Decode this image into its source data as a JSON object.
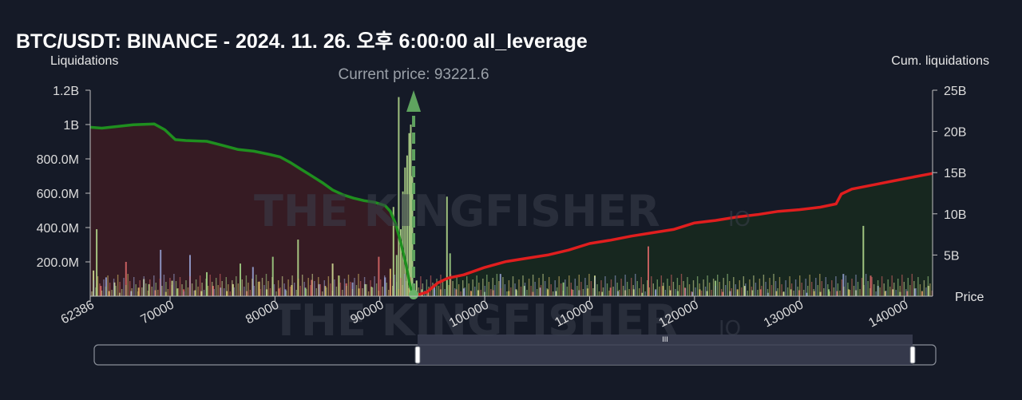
{
  "chart_data": {
    "type": "bar",
    "title": "BTC/USDT: BINANCE - 2024. 11. 26. 오후 6:00:00 all_leverage",
    "ylabel_left": "Liquidations",
    "ylabel_right": "Cum. liquidations",
    "xlabel": "Price",
    "current_price_label": "Current price: 93221.6",
    "current_price": 93221.6,
    "xlim": [
      62386,
      142700
    ],
    "ylim_left": [
      0,
      1200000000
    ],
    "ylim_right": [
      0,
      25000000000
    ],
    "x_ticks": [
      {
        "value": 62386,
        "label": "62386"
      },
      {
        "value": 70000,
        "label": "70000"
      },
      {
        "value": 80000,
        "label": "80000"
      },
      {
        "value": 90000,
        "label": "90000"
      },
      {
        "value": 100000,
        "label": "100000"
      },
      {
        "value": 110000,
        "label": "110000"
      },
      {
        "value": 120000,
        "label": "120000"
      },
      {
        "value": 130000,
        "label": "130000"
      },
      {
        "value": 140000,
        "label": "140000"
      }
    ],
    "y_ticks_left": [
      {
        "value": 200000000,
        "label": "200.0M"
      },
      {
        "value": 400000000,
        "label": "400.0M"
      },
      {
        "value": 600000000,
        "label": "600.0M"
      },
      {
        "value": 800000000,
        "label": "800.0M"
      },
      {
        "value": 1000000000,
        "label": "1B"
      },
      {
        "value": 1200000000,
        "label": "1.2B"
      }
    ],
    "y_ticks_right": [
      {
        "value": 5000000000,
        "label": "5B"
      },
      {
        "value": 10000000000,
        "label": "10B"
      },
      {
        "value": 15000000000,
        "label": "15B"
      },
      {
        "value": 20000000000,
        "label": "20B"
      },
      {
        "value": 25000000000,
        "label": "25B"
      }
    ],
    "series": [
      {
        "name": "cum_long",
        "color": "#1f8f1f",
        "fill": "#3a1c24",
        "points": [
          [
            62386,
            20500000000.0
          ],
          [
            63500,
            20400000000.0
          ],
          [
            65000,
            20600000000.0
          ],
          [
            66500,
            20800000000.0
          ],
          [
            68500,
            20900000000.0
          ],
          [
            69500,
            20200000000.0
          ],
          [
            70500,
            19000000000.0
          ],
          [
            71500,
            18900000000.0
          ],
          [
            73500,
            18800000000.0
          ],
          [
            75000,
            18300000000.0
          ],
          [
            76500,
            17800000000.0
          ],
          [
            78000,
            17600000000.0
          ],
          [
            79500,
            17200000000.0
          ],
          [
            80500,
            16900000000.0
          ],
          [
            81500,
            16200000000.0
          ],
          [
            82500,
            15400000000.0
          ],
          [
            83500,
            14600000000.0
          ],
          [
            84500,
            13800000000.0
          ],
          [
            85500,
            12900000000.0
          ],
          [
            86500,
            12300000000.0
          ],
          [
            87500,
            11900000000.0
          ],
          [
            88500,
            11600000000.0
          ],
          [
            89500,
            11400000000.0
          ],
          [
            90500,
            11000000000.0
          ],
          [
            91000,
            10300000000.0
          ],
          [
            91500,
            8800000000.0
          ],
          [
            92000,
            6500000000.0
          ],
          [
            92500,
            3800000000.0
          ],
          [
            92900,
            1200000000.0
          ],
          [
            93221.6,
            0
          ]
        ]
      },
      {
        "name": "cum_short",
        "color": "#e01e1e",
        "fill": "#17291f",
        "points": [
          [
            93221.6,
            0
          ],
          [
            94500,
            500000000.0
          ],
          [
            95500,
            1600000000.0
          ],
          [
            96500,
            2200000000.0
          ],
          [
            98000,
            2600000000.0
          ],
          [
            100000,
            3500000000.0
          ],
          [
            102000,
            4200000000.0
          ],
          [
            104000,
            4600000000.0
          ],
          [
            106000,
            5000000000.0
          ],
          [
            108000,
            5600000000.0
          ],
          [
            110000,
            6400000000.0
          ],
          [
            112000,
            6800000000.0
          ],
          [
            114000,
            7300000000.0
          ],
          [
            116000,
            7700000000.0
          ],
          [
            118000,
            8100000000.0
          ],
          [
            120000,
            8900000000.0
          ],
          [
            122000,
            9200000000.0
          ],
          [
            124000,
            9600000000.0
          ],
          [
            126000,
            9900000000.0
          ],
          [
            128000,
            10300000000.0
          ],
          [
            130000,
            10500000000.0
          ],
          [
            132000,
            10800000000.0
          ],
          [
            133500,
            11200000000.0
          ],
          [
            134000,
            12400000000.0
          ],
          [
            135000,
            13000000000.0
          ],
          [
            137000,
            13500000000.0
          ],
          [
            139000,
            14000000000.0
          ],
          [
            141000,
            14500000000.0
          ],
          [
            142700,
            14900000000.0
          ]
        ]
      }
    ],
    "bars": [
      [
        62700,
        150000000.0
      ],
      [
        63000,
        390000000.0
      ],
      [
        63400,
        60000000.0
      ],
      [
        63900,
        110000000.0
      ],
      [
        64200,
        30000000.0
      ],
      [
        64700,
        80000000.0
      ],
      [
        65200,
        20000000.0
      ],
      [
        65800,
        200000000.0
      ],
      [
        66300,
        30000000.0
      ],
      [
        67000,
        50000000.0
      ],
      [
        67500,
        100000000.0
      ],
      [
        68000,
        70000000.0
      ],
      [
        68600,
        35000000.0
      ],
      [
        69100,
        270000000.0
      ],
      [
        69600,
        25000000.0
      ],
      [
        70200,
        90000000.0
      ],
      [
        70700,
        45000000.0
      ],
      [
        71300,
        40000000.0
      ],
      [
        71900,
        240000000.0
      ],
      [
        72400,
        35000000.0
      ],
      [
        73000,
        30000000.0
      ],
      [
        73500,
        140000000.0
      ],
      [
        74100,
        60000000.0
      ],
      [
        74800,
        50000000.0
      ],
      [
        75400,
        30000000.0
      ],
      [
        76000,
        70000000.0
      ],
      [
        76700,
        190000000.0
      ],
      [
        77300,
        30000000.0
      ],
      [
        77900,
        170000000.0
      ],
      [
        78500,
        85000000.0
      ],
      [
        79200,
        40000000.0
      ],
      [
        79800,
        230000000.0
      ],
      [
        80400,
        45000000.0
      ],
      [
        81000,
        40000000.0
      ],
      [
        81600,
        65000000.0
      ],
      [
        82200,
        330000000.0
      ],
      [
        82900,
        50000000.0
      ],
      [
        83500,
        95000000.0
      ],
      [
        84200,
        70000000.0
      ],
      [
        84800,
        60000000.0
      ],
      [
        85500,
        190000000.0
      ],
      [
        86100,
        120000000.0
      ],
      [
        86800,
        75000000.0
      ],
      [
        87400,
        80000000.0
      ],
      [
        88000,
        45000000.0
      ],
      [
        88600,
        70000000.0
      ],
      [
        89200,
        55000000.0
      ],
      [
        89900,
        230000000.0
      ],
      [
        90500,
        110000000.0
      ],
      [
        91000,
        160000000.0
      ],
      [
        91300,
        520000000.0
      ],
      [
        91600,
        240000000.0
      ],
      [
        91800,
        1160000000.0
      ],
      [
        92000,
        390000000.0
      ],
      [
        92200,
        610000000.0
      ],
      [
        92400,
        750000000.0
      ],
      [
        92600,
        820000000.0
      ],
      [
        92800,
        950000000.0
      ],
      [
        92950,
        1000000000.0
      ],
      [
        93100,
        700000000.0
      ],
      [
        93500,
        90000000.0
      ],
      [
        94000,
        40000000.0
      ],
      [
        94600,
        35000000.0
      ],
      [
        95200,
        70000000.0
      ],
      [
        95800,
        40000000.0
      ],
      [
        96400,
        580000000.0
      ],
      [
        96700,
        250000000.0
      ],
      [
        97300,
        40000000.0
      ],
      [
        98000,
        45000000.0
      ],
      [
        98700,
        30000000.0
      ],
      [
        99400,
        35000000.0
      ],
      [
        100000,
        25000000.0
      ],
      [
        100800,
        35000000.0
      ],
      [
        101500,
        130000000.0
      ],
      [
        102300,
        30000000.0
      ],
      [
        103000,
        40000000.0
      ],
      [
        103800,
        60000000.0
      ],
      [
        104600,
        25000000.0
      ],
      [
        105300,
        50000000.0
      ],
      [
        106000,
        40000000.0
      ],
      [
        106800,
        30000000.0
      ],
      [
        107500,
        80000000.0
      ],
      [
        108300,
        40000000.0
      ],
      [
        109000,
        35000000.0
      ],
      [
        109800,
        45000000.0
      ],
      [
        110500,
        120000000.0
      ],
      [
        111200,
        25000000.0
      ],
      [
        112000,
        50000000.0
      ],
      [
        112700,
        30000000.0
      ],
      [
        113400,
        35000000.0
      ],
      [
        114200,
        40000000.0
      ],
      [
        115000,
        20000000.0
      ],
      [
        115600,
        290000000.0
      ],
      [
        116300,
        40000000.0
      ],
      [
        117000,
        60000000.0
      ],
      [
        117700,
        35000000.0
      ],
      [
        118400,
        30000000.0
      ],
      [
        119100,
        50000000.0
      ],
      [
        119800,
        25000000.0
      ],
      [
        120500,
        40000000.0
      ],
      [
        121200,
        30000000.0
      ],
      [
        122000,
        90000000.0
      ],
      [
        122700,
        25000000.0
      ],
      [
        123400,
        30000000.0
      ],
      [
        124100,
        40000000.0
      ],
      [
        124800,
        60000000.0
      ],
      [
        125500,
        35000000.0
      ],
      [
        126300,
        40000000.0
      ],
      [
        127000,
        20000000.0
      ],
      [
        127800,
        30000000.0
      ],
      [
        128500,
        25000000.0
      ],
      [
        129200,
        40000000.0
      ],
      [
        130000,
        35000000.0
      ],
      [
        130700,
        20000000.0
      ],
      [
        131400,
        30000000.0
      ],
      [
        132000,
        25000000.0
      ],
      [
        132800,
        40000000.0
      ],
      [
        133600,
        30000000.0
      ],
      [
        134200,
        130000000.0
      ],
      [
        134700,
        40000000.0
      ],
      [
        135400,
        35000000.0
      ],
      [
        136100,
        410000000.0
      ],
      [
        136800,
        120000000.0
      ],
      [
        137500,
        60000000.0
      ],
      [
        138200,
        30000000.0
      ],
      [
        138900,
        40000000.0
      ],
      [
        139600,
        25000000.0
      ],
      [
        140300,
        30000000.0
      ],
      [
        141000,
        45000000.0
      ],
      [
        141700,
        30000000.0
      ],
      [
        142300,
        60000000.0
      ]
    ],
    "watermark": "THE KINGFISHER",
    "watermark_suffix": "IO",
    "legend": "none",
    "grid": false
  },
  "slider": {
    "range_from": 93221.6,
    "range_to": 142700,
    "full_from": 62386,
    "full_to": 142700,
    "grip_label": "III"
  },
  "colors": {
    "background": "#151a27",
    "long_line": "#1f8f1f",
    "short_line": "#e01e1e",
    "long_area": "#3a1c24",
    "short_area": "#17291f",
    "current_price": "#5fa35f"
  }
}
